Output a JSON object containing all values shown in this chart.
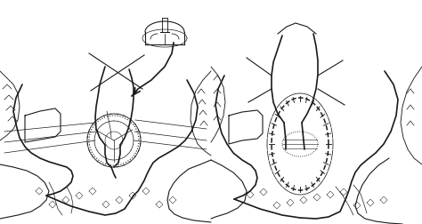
{
  "figsize": [
    4.74,
    2.52
  ],
  "dpi": 100,
  "background_color": "#ffffff",
  "lc": "#1a1a1a",
  "lw": 0.8,
  "tlw": 0.5,
  "thklw": 1.2
}
